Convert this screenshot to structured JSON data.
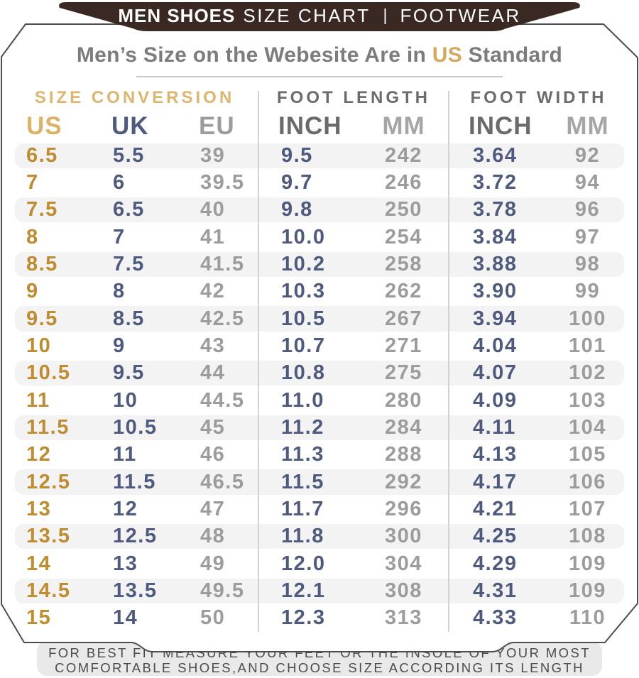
{
  "banner": {
    "brand_bold": "MEN SHOES",
    "brand_rest": "SIZE CHART",
    "separator": "|",
    "category": "FOOTWEAR"
  },
  "heading": {
    "prefix": "Men’s Size on the Webesite Are in ",
    "highlight": "US",
    "suffix": " Standard"
  },
  "chart_data": {
    "type": "table",
    "title": "Men’s Size on the Webesite Are in US Standard",
    "section_headers": [
      "SIZE CONVERSION",
      "FOOT LENGTH",
      "FOOT WIDTH"
    ],
    "column_headers": [
      "US",
      "UK",
      "EU",
      "INCH",
      "MM",
      "INCH",
      "MM"
    ],
    "rows": [
      [
        "6.5",
        "5.5",
        "39",
        "9.5",
        "242",
        "3.64",
        "92"
      ],
      [
        "7",
        "6",
        "39.5",
        "9.7",
        "246",
        "3.72",
        "94"
      ],
      [
        "7.5",
        "6.5",
        "40",
        "9.8",
        "250",
        "3.78",
        "96"
      ],
      [
        "8",
        "7",
        "41",
        "10.0",
        "254",
        "3.84",
        "97"
      ],
      [
        "8.5",
        "7.5",
        "41.5",
        "10.2",
        "258",
        "3.88",
        "98"
      ],
      [
        "9",
        "8",
        "42",
        "10.3",
        "262",
        "3.90",
        "99"
      ],
      [
        "9.5",
        "8.5",
        "42.5",
        "10.5",
        "267",
        "3.94",
        "100"
      ],
      [
        "10",
        "9",
        "43",
        "10.7",
        "271",
        "4.04",
        "101"
      ],
      [
        "10.5",
        "9.5",
        "44",
        "10.8",
        "275",
        "4.07",
        "102"
      ],
      [
        "11",
        "10",
        "44.5",
        "11.0",
        "280",
        "4.09",
        "103"
      ],
      [
        "11.5",
        "10.5",
        "45",
        "11.2",
        "284",
        "4.11",
        "104"
      ],
      [
        "12",
        "11",
        "46",
        "11.3",
        "288",
        "4.13",
        "105"
      ],
      [
        "12.5",
        "11.5",
        "46.5",
        "11.5",
        "292",
        "4.17",
        "106"
      ],
      [
        "13",
        "12",
        "47",
        "11.7",
        "296",
        "4.21",
        "107"
      ],
      [
        "13.5",
        "12.5",
        "48",
        "11.8",
        "300",
        "4.25",
        "108"
      ],
      [
        "14",
        "13",
        "49",
        "12.0",
        "304",
        "4.29",
        "109"
      ],
      [
        "14.5",
        "13.5",
        "49.5",
        "12.1",
        "308",
        "4.31",
        "109"
      ],
      [
        "15",
        "14",
        "50",
        "12.3",
        "313",
        "4.33",
        "110"
      ]
    ]
  },
  "footer": {
    "line1": "FOR BEST FIT MEASURE YOUR FEET OR THE INSOLE OF YOUR MOST",
    "line2": "COMFORTABLE SHOES,AND CHOOSE SIZE ACCORDING ITS LENGTH"
  },
  "colors": {
    "banner_bg": "#3a2822",
    "gold_data": "#bf8c30",
    "gold_header": "#ddb56e",
    "navy": "#4e5a7e",
    "gray_data": "#9c9c9c",
    "section_gray": "#6b6b6b",
    "mm_header_gray": "#a6a6a6",
    "title_gray": "#7c7c7c",
    "stripe": "#f3f3f4",
    "footer_bg": "#e9e9e9",
    "card_border": "#4d4d4d"
  }
}
